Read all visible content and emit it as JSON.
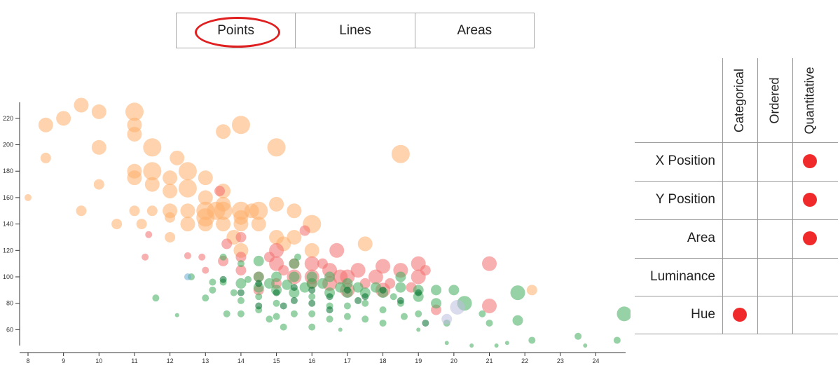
{
  "tabs": {
    "items": [
      {
        "label": "Points"
      },
      {
        "label": "Lines"
      },
      {
        "label": "Areas"
      }
    ],
    "selected": "Points",
    "highlight_color": "#e02020"
  },
  "matrix": {
    "columns": [
      "Categorical",
      "Ordered",
      "Quantitative"
    ],
    "rows": [
      {
        "label": "X Position",
        "marks": [
          "Quantitative"
        ]
      },
      {
        "label": "Y Position",
        "marks": [
          "Quantitative"
        ]
      },
      {
        "label": "Area",
        "marks": [
          "Quantitative"
        ]
      },
      {
        "label": "Luminance",
        "marks": []
      },
      {
        "label": "Hue",
        "marks": [
          "Categorical"
        ]
      }
    ],
    "dot_color": "#f02a2a"
  },
  "chart_data": {
    "type": "scatter",
    "title": "",
    "xlabel": "",
    "ylabel": "",
    "xlim": [
      8,
      24.8
    ],
    "ylim": [
      48,
      230
    ],
    "xticks": [
      8,
      9,
      10,
      11,
      12,
      13,
      14,
      15,
      16,
      17,
      18,
      19,
      20,
      21,
      22,
      23,
      24
    ],
    "yticks": [
      60,
      80,
      100,
      120,
      140,
      160,
      180,
      200,
      220
    ],
    "grid": false,
    "legend": "none",
    "series": [
      {
        "color": "#fdae6b",
        "points": [
          [
            8.0,
            160,
            2
          ],
          [
            8.5,
            190,
            3
          ],
          [
            8.5,
            215,
            4
          ],
          [
            9.0,
            220,
            4
          ],
          [
            9.5,
            230,
            4
          ],
          [
            9.5,
            150,
            3
          ],
          [
            10.0,
            225,
            4
          ],
          [
            10.0,
            198,
            4
          ],
          [
            10.0,
            170,
            3
          ],
          [
            10.5,
            140,
            3
          ],
          [
            11.0,
            225,
            5
          ],
          [
            11.0,
            215,
            4
          ],
          [
            11.0,
            208,
            4
          ],
          [
            11.0,
            180,
            4
          ],
          [
            11.0,
            175,
            4
          ],
          [
            11.0,
            150,
            3
          ],
          [
            11.2,
            140,
            3
          ],
          [
            11.5,
            198,
            5
          ],
          [
            11.5,
            180,
            5
          ],
          [
            11.5,
            170,
            4
          ],
          [
            11.5,
            150,
            3
          ],
          [
            12.0,
            175,
            4
          ],
          [
            12.0,
            165,
            4
          ],
          [
            12.0,
            150,
            4
          ],
          [
            12.0,
            145,
            3
          ],
          [
            12.0,
            130,
            3
          ],
          [
            12.2,
            190,
            4
          ],
          [
            12.5,
            180,
            5
          ],
          [
            12.5,
            167,
            5
          ],
          [
            12.5,
            150,
            4
          ],
          [
            12.5,
            140,
            4
          ],
          [
            13.0,
            175,
            4
          ],
          [
            13.0,
            160,
            4
          ],
          [
            13.0,
            150,
            5
          ],
          [
            13.0,
            145,
            5
          ],
          [
            13.0,
            140,
            4
          ],
          [
            13.3,
            150,
            5
          ],
          [
            13.5,
            210,
            4
          ],
          [
            13.5,
            165,
            4
          ],
          [
            13.5,
            155,
            4
          ],
          [
            13.5,
            150,
            5
          ],
          [
            13.5,
            140,
            4
          ],
          [
            13.8,
            130,
            4
          ],
          [
            14.0,
            215,
            5
          ],
          [
            14.0,
            150,
            5
          ],
          [
            14.0,
            145,
            4
          ],
          [
            14.0,
            140,
            4
          ],
          [
            14.0,
            120,
            4
          ],
          [
            14.3,
            150,
            4
          ],
          [
            14.5,
            150,
            5
          ],
          [
            14.5,
            140,
            4
          ],
          [
            15.0,
            198,
            5
          ],
          [
            15.0,
            155,
            4
          ],
          [
            15.0,
            130,
            4
          ],
          [
            15.2,
            125,
            4
          ],
          [
            15.5,
            150,
            4
          ],
          [
            15.5,
            130,
            4
          ],
          [
            16.0,
            140,
            5
          ],
          [
            16.0,
            120,
            4
          ],
          [
            17.5,
            125,
            4
          ],
          [
            18.5,
            193,
            5
          ],
          [
            22.2,
            90,
            3
          ]
        ]
      },
      {
        "color": "#f26d6d",
        "points": [
          [
            11.3,
            115,
            2
          ],
          [
            11.4,
            132,
            2
          ],
          [
            12.5,
            116,
            2
          ],
          [
            12.9,
            115,
            2
          ],
          [
            13.0,
            105,
            2
          ],
          [
            13.4,
            165,
            3
          ],
          [
            13.5,
            112,
            3
          ],
          [
            13.6,
            125,
            3
          ],
          [
            14.0,
            130,
            3
          ],
          [
            14.0,
            115,
            3
          ],
          [
            14.0,
            105,
            3
          ],
          [
            14.5,
            100,
            3
          ],
          [
            14.5,
            90,
            3
          ],
          [
            14.8,
            115,
            3
          ],
          [
            15.0,
            120,
            4
          ],
          [
            15.0,
            110,
            4
          ],
          [
            15.0,
            95,
            3
          ],
          [
            15.2,
            105,
            3
          ],
          [
            15.5,
            110,
            3
          ],
          [
            15.5,
            100,
            4
          ],
          [
            15.8,
            135,
            3
          ],
          [
            16.0,
            110,
            4
          ],
          [
            16.0,
            100,
            4
          ],
          [
            16.0,
            95,
            3
          ],
          [
            16.3,
            110,
            3
          ],
          [
            16.5,
            105,
            4
          ],
          [
            16.5,
            95,
            4
          ],
          [
            16.7,
            120,
            4
          ],
          [
            16.8,
            100,
            4
          ],
          [
            17.0,
            100,
            4
          ],
          [
            17.0,
            90,
            4
          ],
          [
            17.3,
            105,
            4
          ],
          [
            17.5,
            95,
            3
          ],
          [
            17.8,
            100,
            4
          ],
          [
            18.0,
            90,
            4
          ],
          [
            18.0,
            108,
            4
          ],
          [
            18.2,
            95,
            3
          ],
          [
            18.5,
            105,
            4
          ],
          [
            18.8,
            92,
            3
          ],
          [
            19.0,
            110,
            4
          ],
          [
            19.0,
            100,
            4
          ],
          [
            19.2,
            105,
            3
          ],
          [
            19.5,
            75,
            3
          ],
          [
            21.0,
            110,
            4
          ],
          [
            21.0,
            78,
            4
          ]
        ]
      },
      {
        "color": "#41ab5d",
        "points": [
          [
            11.6,
            84,
            2
          ],
          [
            12.2,
            71,
            1
          ],
          [
            12.6,
            100,
            2
          ],
          [
            13.0,
            84,
            2
          ],
          [
            13.2,
            96,
            2
          ],
          [
            13.2,
            90,
            2
          ],
          [
            13.5,
            115,
            2
          ],
          [
            13.5,
            96,
            2
          ],
          [
            13.6,
            72,
            2
          ],
          [
            13.8,
            88,
            2
          ],
          [
            14.0,
            110,
            2
          ],
          [
            14.0,
            95,
            3
          ],
          [
            14.0,
            82,
            2
          ],
          [
            14.0,
            72,
            2
          ],
          [
            14.2,
            98,
            2
          ],
          [
            14.5,
            112,
            3
          ],
          [
            14.5,
            100,
            3
          ],
          [
            14.5,
            92,
            3
          ],
          [
            14.5,
            85,
            2
          ],
          [
            14.5,
            75,
            2
          ],
          [
            14.8,
            95,
            3
          ],
          [
            14.8,
            68,
            2
          ],
          [
            15.0,
            100,
            3
          ],
          [
            15.0,
            90,
            3
          ],
          [
            15.0,
            80,
            2
          ],
          [
            15.0,
            70,
            2
          ],
          [
            15.2,
            62,
            2
          ],
          [
            15.3,
            94,
            3
          ],
          [
            15.5,
            110,
            3
          ],
          [
            15.5,
            100,
            3
          ],
          [
            15.5,
            88,
            3
          ],
          [
            15.5,
            72,
            2
          ],
          [
            15.6,
            115,
            2
          ],
          [
            15.8,
            92,
            3
          ],
          [
            16.0,
            100,
            3
          ],
          [
            16.0,
            95,
            3
          ],
          [
            16.0,
            85,
            2
          ],
          [
            16.0,
            72,
            2
          ],
          [
            16.0,
            62,
            2
          ],
          [
            16.3,
            95,
            3
          ],
          [
            16.5,
            100,
            3
          ],
          [
            16.5,
            88,
            3
          ],
          [
            16.5,
            78,
            2
          ],
          [
            16.5,
            68,
            2
          ],
          [
            16.8,
            92,
            3
          ],
          [
            16.8,
            60,
            1
          ],
          [
            17.0,
            95,
            3
          ],
          [
            17.0,
            88,
            3
          ],
          [
            17.0,
            78,
            2
          ],
          [
            17.0,
            70,
            2
          ],
          [
            17.3,
            92,
            3
          ],
          [
            17.5,
            88,
            3
          ],
          [
            17.5,
            80,
            2
          ],
          [
            17.5,
            68,
            2
          ],
          [
            17.8,
            92,
            3
          ],
          [
            18.0,
            88,
            3
          ],
          [
            18.0,
            75,
            2
          ],
          [
            18.0,
            65,
            2
          ],
          [
            18.3,
            85,
            2
          ],
          [
            18.5,
            100,
            3
          ],
          [
            18.5,
            92,
            3
          ],
          [
            18.5,
            80,
            2
          ],
          [
            18.6,
            70,
            2
          ],
          [
            19.0,
            90,
            3
          ],
          [
            19.0,
            85,
            3
          ],
          [
            19.0,
            72,
            2
          ],
          [
            19.0,
            60,
            1
          ],
          [
            19.5,
            90,
            3
          ],
          [
            19.5,
            80,
            3
          ],
          [
            19.8,
            65,
            2
          ],
          [
            20.0,
            90,
            3
          ],
          [
            20.3,
            80,
            4
          ],
          [
            20.8,
            72,
            2
          ],
          [
            21.0,
            65,
            2
          ],
          [
            21.5,
            50,
            1
          ],
          [
            21.8,
            88,
            4
          ],
          [
            21.8,
            67,
            3
          ],
          [
            22.2,
            52,
            2
          ],
          [
            23.5,
            55,
            2
          ],
          [
            23.7,
            48,
            1
          ],
          [
            24.6,
            52,
            2
          ],
          [
            24.8,
            72,
            4
          ],
          [
            20.5,
            48,
            1
          ],
          [
            21.2,
            48,
            1
          ],
          [
            19.8,
            50,
            1
          ]
        ]
      },
      {
        "color": "#006d2c",
        "points": [
          [
            13.5,
            98,
            2
          ],
          [
            14.0,
            88,
            2
          ],
          [
            14.5,
            78,
            2
          ],
          [
            14.5,
            95,
            2
          ],
          [
            15.0,
            88,
            2
          ],
          [
            15.2,
            78,
            2
          ],
          [
            15.5,
            92,
            2
          ],
          [
            15.5,
            82,
            2
          ],
          [
            16.0,
            90,
            2
          ],
          [
            16.0,
            80,
            2
          ],
          [
            16.5,
            85,
            2
          ],
          [
            16.5,
            75,
            2
          ],
          [
            17.0,
            90,
            2
          ],
          [
            17.3,
            82,
            2
          ],
          [
            17.5,
            85,
            2
          ],
          [
            18.0,
            90,
            2
          ],
          [
            18.5,
            82,
            2
          ],
          [
            19.0,
            88,
            2
          ],
          [
            19.2,
            65,
            2
          ]
        ]
      },
      {
        "color": "#bcbddc",
        "points": [
          [
            19.8,
            68,
            3
          ],
          [
            20.1,
            77,
            4
          ]
        ]
      },
      {
        "color": "#6baed6",
        "points": [
          [
            12.5,
            100,
            2
          ]
        ]
      }
    ]
  }
}
